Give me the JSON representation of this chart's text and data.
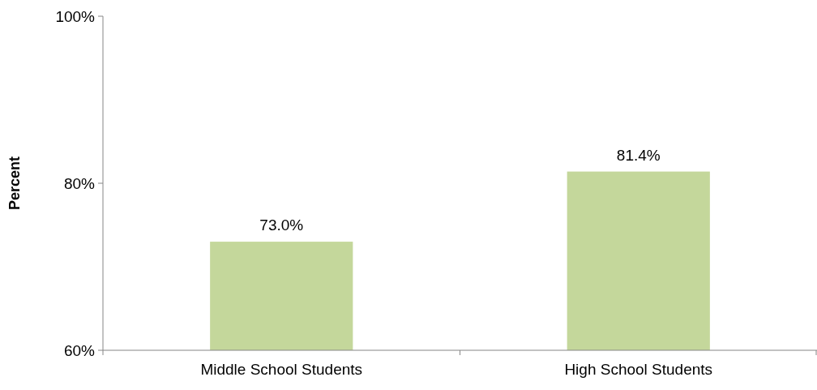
{
  "chart_data": {
    "type": "bar",
    "ylabel": "Percent",
    "categories": [
      "Middle School Students",
      "High School Students"
    ],
    "values": [
      73.0,
      81.4
    ],
    "value_labels": [
      "73.0%",
      "81.4%"
    ],
    "color": "#c4d79b",
    "ylim": [
      60,
      100
    ],
    "yticks": [
      {
        "value": 60,
        "label": "60%"
      },
      {
        "value": 80,
        "label": "80%"
      },
      {
        "value": 100,
        "label": "100%"
      }
    ]
  }
}
